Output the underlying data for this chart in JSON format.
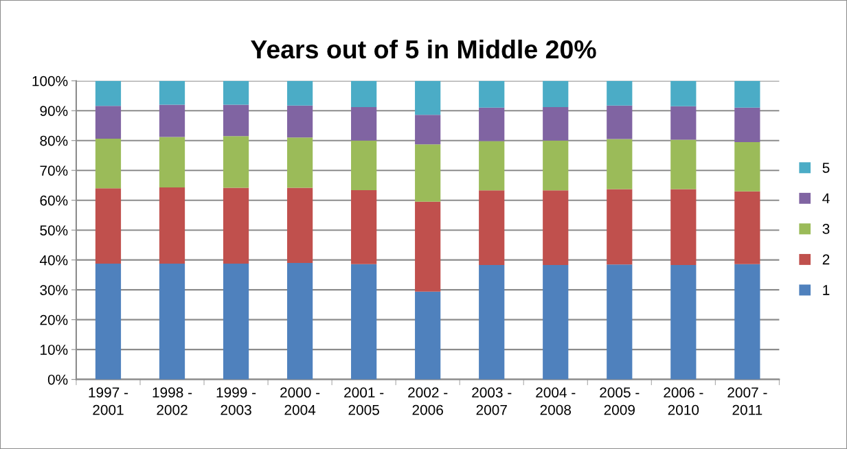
{
  "chart_data": {
    "type": "bar",
    "title": "Years out of 5 in Middle 20%",
    "stacked": true,
    "categories": [
      "1997 -\n2001",
      "1998 -\n2002",
      "1999 -\n2003",
      "2000 -\n2004",
      "2001 -\n2005",
      "2002 -\n2006",
      "2003 -\n2007",
      "2004 -\n2008",
      "2005 -\n2009",
      "2006 -\n2010",
      "2007 -\n2011"
    ],
    "series": [
      {
        "name": "1",
        "color": "#4f81bd",
        "values": [
          38.8,
          38.8,
          38.8,
          39.0,
          38.6,
          29.4,
          38.3,
          38.3,
          38.5,
          38.3,
          38.6
        ]
      },
      {
        "name": "2",
        "color": "#c0504d",
        "values": [
          25.2,
          25.5,
          25.4,
          25.2,
          24.8,
          30.1,
          25.0,
          25.0,
          25.2,
          25.4,
          24.4
        ]
      },
      {
        "name": "3",
        "color": "#9bbb59",
        "values": [
          16.6,
          16.9,
          17.3,
          16.8,
          16.6,
          19.2,
          16.5,
          16.7,
          16.8,
          16.6,
          16.5
        ]
      },
      {
        "name": "4",
        "color": "#8064a2",
        "values": [
          11.0,
          10.8,
          10.5,
          10.7,
          11.2,
          9.9,
          11.2,
          11.2,
          11.2,
          11.2,
          11.5
        ]
      },
      {
        "name": "5",
        "color": "#4bacc6",
        "values": [
          8.4,
          8.0,
          8.0,
          8.3,
          8.8,
          11.4,
          9.0,
          8.8,
          8.3,
          8.5,
          9.0
        ]
      }
    ],
    "ylim": [
      0,
      100
    ],
    "yticks": [
      {
        "value": 0,
        "label": "0%"
      },
      {
        "value": 10,
        "label": "10%"
      },
      {
        "value": 20,
        "label": "20%"
      },
      {
        "value": 30,
        "label": "30%"
      },
      {
        "value": 40,
        "label": "40%"
      },
      {
        "value": 50,
        "label": "50%"
      },
      {
        "value": 60,
        "label": "60%"
      },
      {
        "value": 70,
        "label": "70%"
      },
      {
        "value": 80,
        "label": "80%"
      },
      {
        "value": 90,
        "label": "90%"
      },
      {
        "value": 100,
        "label": "100%"
      }
    ],
    "grid": "y",
    "legend": "right"
  }
}
